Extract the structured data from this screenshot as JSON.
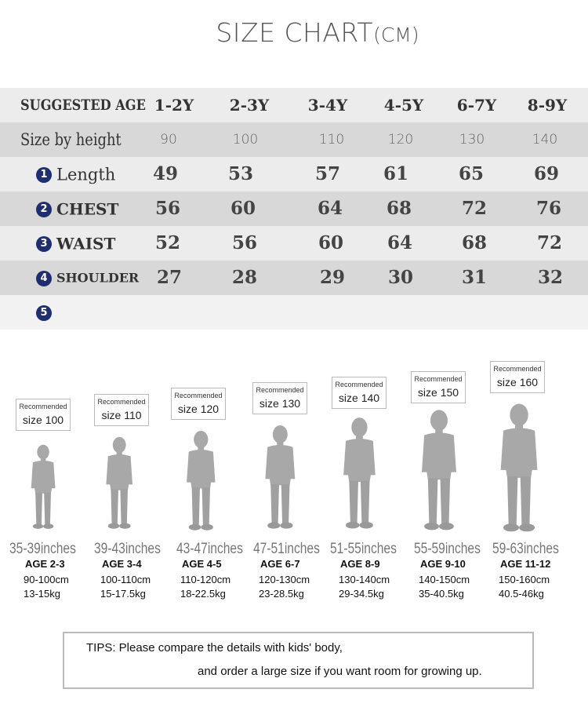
{
  "title": {
    "main": "SIZE CHART",
    "unit": "(CM)"
  },
  "table": {
    "header": {
      "label": "SUGGESTED AGE",
      "cols": [
        "1-2Y",
        "2-3Y",
        "3-4Y",
        "4-5Y",
        "6-7Y",
        "8-9Y"
      ]
    },
    "height_row": {
      "label": "Size by height",
      "values": [
        "90",
        "100",
        "110",
        "120",
        "130",
        "140"
      ]
    },
    "rows": [
      {
        "num": "1",
        "label": "Length",
        "values": [
          "49",
          "53",
          "57",
          "61",
          "65",
          "69"
        ]
      },
      {
        "num": "2",
        "label": "CHEST",
        "values": [
          "56",
          "60",
          "64",
          "68",
          "72",
          "76"
        ]
      },
      {
        "num": "3",
        "label": "WAIST",
        "values": [
          "52",
          "56",
          "60",
          "64",
          "68",
          "72"
        ]
      },
      {
        "num": "4",
        "label": "SHOULDER",
        "values": [
          "27",
          "28",
          "29",
          "30",
          "31",
          "32"
        ]
      },
      {
        "num": "5",
        "label": "",
        "values": [
          "",
          "",
          "",
          "",
          "",
          ""
        ]
      }
    ]
  },
  "kids": [
    {
      "rec": "Recommended",
      "size": "size 100",
      "inches": "35-39inches",
      "age": "AGE 2-3",
      "cm": "90-100cm",
      "kg": "13-15kg"
    },
    {
      "rec": "Recommended",
      "size": "size 110",
      "inches": "39-43inches",
      "age": "AGE 3-4",
      "cm": "100-110cm",
      "kg": "15-17.5kg"
    },
    {
      "rec": "Recommended",
      "size": "size 120",
      "inches": "43-47inches",
      "age": "AGE 4-5",
      "cm": "110-120cm",
      "kg": "18-22.5kg"
    },
    {
      "rec": "Recommended",
      "size": "size 130",
      "inches": "47-51inches",
      "age": "AGE 6-7",
      "cm": "120-130cm",
      "kg": "23-28.5kg"
    },
    {
      "rec": "Recommended",
      "size": "size 140",
      "inches": "51-55inches",
      "age": "AGE 8-9",
      "cm": "130-140cm",
      "kg": "29-34.5kg"
    },
    {
      "rec": "Recommended",
      "size": "size 150",
      "inches": "55-59inches",
      "age": "AGE 9-10",
      "cm": "140-150cm",
      "kg": "35-40.5kg"
    },
    {
      "rec": "Recommended",
      "size": "size 160",
      "inches": "59-63inches",
      "age": "AGE 11-12",
      "cm": "150-160cm",
      "kg": "40.5-46kg"
    }
  ],
  "tips": {
    "line1": "TIPS: Please compare the details with kids' body,",
    "line2": "and order a large size if you want room for growing up."
  }
}
